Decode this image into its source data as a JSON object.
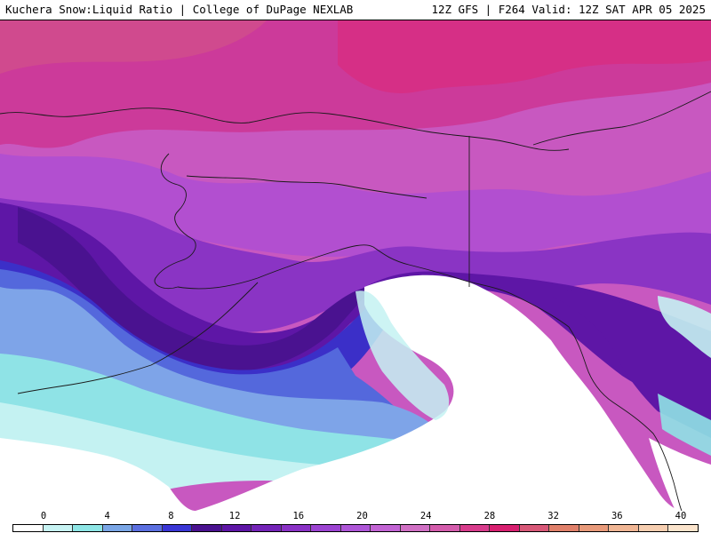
{
  "header": {
    "left_title": "Kuchera Snow:Liquid Ratio | College of DuPage NEXLAB",
    "right_title": "12Z GFS | F264 Valid: 12Z SAT APR 05 2025"
  },
  "legend": {
    "tick_labels": [
      "0",
      "4",
      "8",
      "12",
      "16",
      "20",
      "24",
      "28",
      "32",
      "36",
      "40"
    ],
    "colors": [
      "#ffffff",
      "#c8f4f4",
      "#8ee6e6",
      "#7aa6e6",
      "#5b6fe0",
      "#3a36d6",
      "#4a1290",
      "#5e16a6",
      "#7424b8",
      "#8a32c6",
      "#9c44d2",
      "#ae56d8",
      "#c264d4",
      "#d070c4",
      "#d45cac",
      "#d83c8c",
      "#d82070",
      "#d85878",
      "#e0806a",
      "#e89a7a",
      "#f0b694",
      "#f6ceb0",
      "#fbe4cc"
    ]
  },
  "map": {
    "colors": {
      "ocean_white": "#ffffff",
      "cyan_light": "#c4f2f2",
      "cyan": "#8fe3e6",
      "blue_light": "#7ea4e8",
      "blue": "#5468dc",
      "indigo": "#3b2fc8",
      "deep_purple": "#4c128e",
      "purple": "#6a1ea8",
      "violet": "#8a34c4",
      "orchid": "#b24fd0",
      "magenta_light": "#c858c0",
      "magenta": "#cc3a9a",
      "pink": "#d62f86",
      "rose": "#e0407e",
      "border": "#1a1a1a"
    }
  }
}
